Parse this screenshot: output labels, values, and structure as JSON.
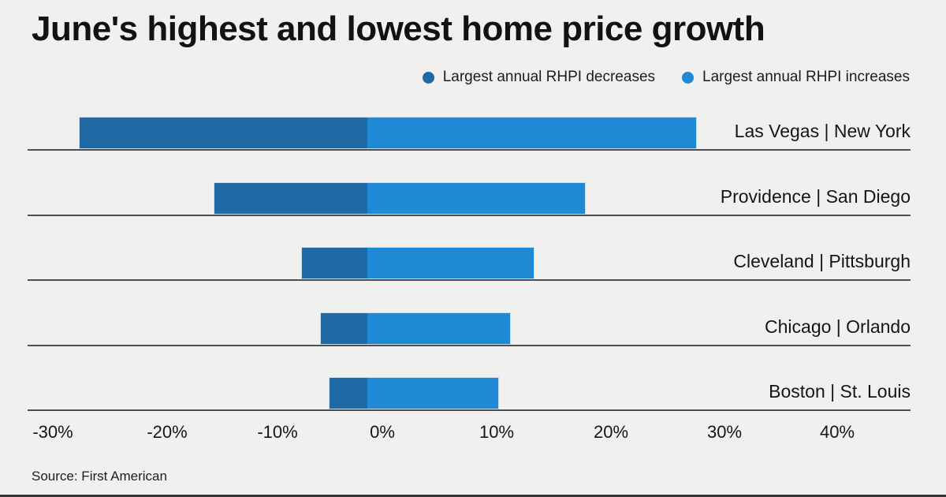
{
  "title": "June's highest and lowest home price growth",
  "legend": {
    "decreases": "Largest annual RHPI decreases",
    "increases": "Largest annual RHPI increases"
  },
  "source": "Source: First American",
  "colors": {
    "decrease": "#1f6aa5",
    "increase": "#1f89d5",
    "background": "#f0f1ef",
    "baseline": "#4f4f4f",
    "bar_outline": "#c8ddef"
  },
  "chart_data": {
    "type": "bar",
    "orientation": "horizontal",
    "stacking": "diverging",
    "title": "June's highest and lowest home price growth",
    "xlabel": "",
    "ylabel": "",
    "grid": false,
    "legend_position": "top-right",
    "categories": [
      "Las Vegas | New York",
      "Providence | San Diego",
      "Cleveland | Pittsburgh",
      "Chicago | Orlando",
      "Boston | St. Louis"
    ],
    "series": [
      {
        "name": "Largest annual RHPI decreases",
        "values": [
          -25.2,
          -13.4,
          -5.7,
          -4.1,
          -3.3
        ]
      },
      {
        "name": "Largest annual RHPI increases",
        "values": [
          28.9,
          19.2,
          14.7,
          12.6,
          11.6
        ]
      }
    ],
    "ticks": [
      "-30%",
      "-20%",
      "-10%",
      "0%",
      "10%",
      "20%",
      "30%",
      "40%"
    ],
    "tick_values": [
      -30,
      -20,
      -10,
      0,
      10,
      20,
      30,
      40
    ],
    "xlim": [
      -30,
      47
    ]
  }
}
